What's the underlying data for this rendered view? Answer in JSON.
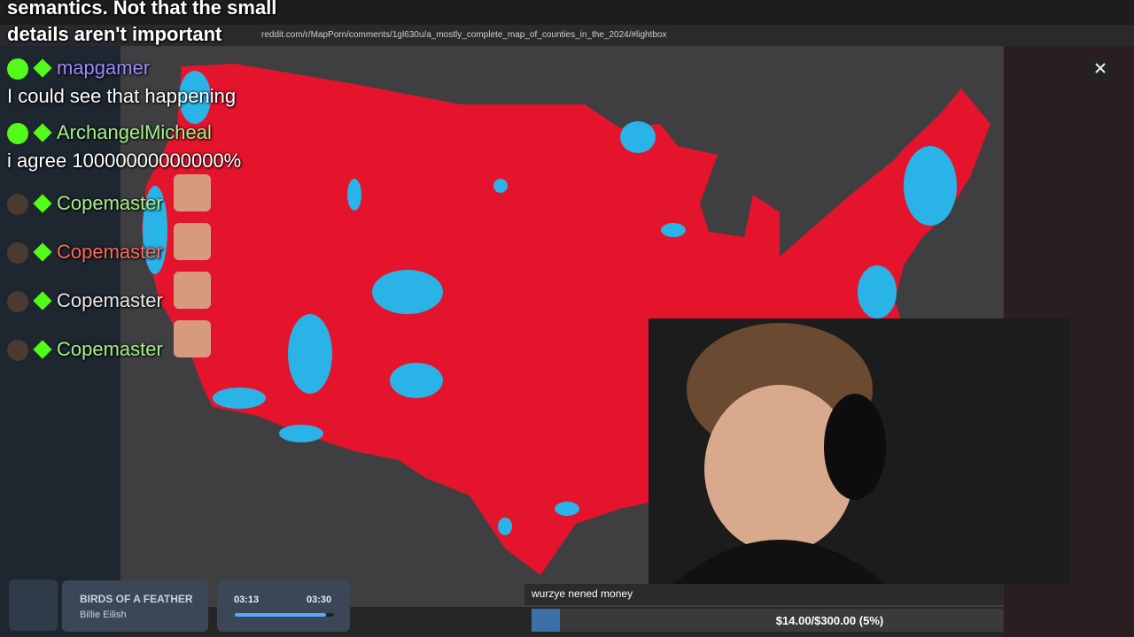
{
  "overlay_top": {
    "line1": "semantics. Not that the small",
    "line2": "details aren't important"
  },
  "browser": {
    "url": "reddit.com/r/MapPorn/comments/1gl630u/a_mostly_complete_map_of_counties_in_the_2024/#lightbox"
  },
  "chat": [
    {
      "user": "mapgamer",
      "color": "#9a8cff",
      "message": "I could see that happening"
    },
    {
      "user": "ArchangelMicheal",
      "color": "#a6f08a",
      "message": "i agree 10000000000000%"
    },
    {
      "user": "Copemaster",
      "color": "#a6f08a"
    },
    {
      "user": "Copemaster",
      "color": "#ff6a5c"
    },
    {
      "user": "Copemaster",
      "color": "#e8e8e8"
    },
    {
      "user": "Copemaster",
      "color": "#a6f08a"
    }
  ],
  "music": {
    "title": "BIRDS OF A FEATHER",
    "artist": "Billie Eilish",
    "elapsed": "03:13",
    "duration": "03:30"
  },
  "goal": {
    "name": "wurzye nened money",
    "progress": "$14.00/$300.00 (5%)"
  }
}
